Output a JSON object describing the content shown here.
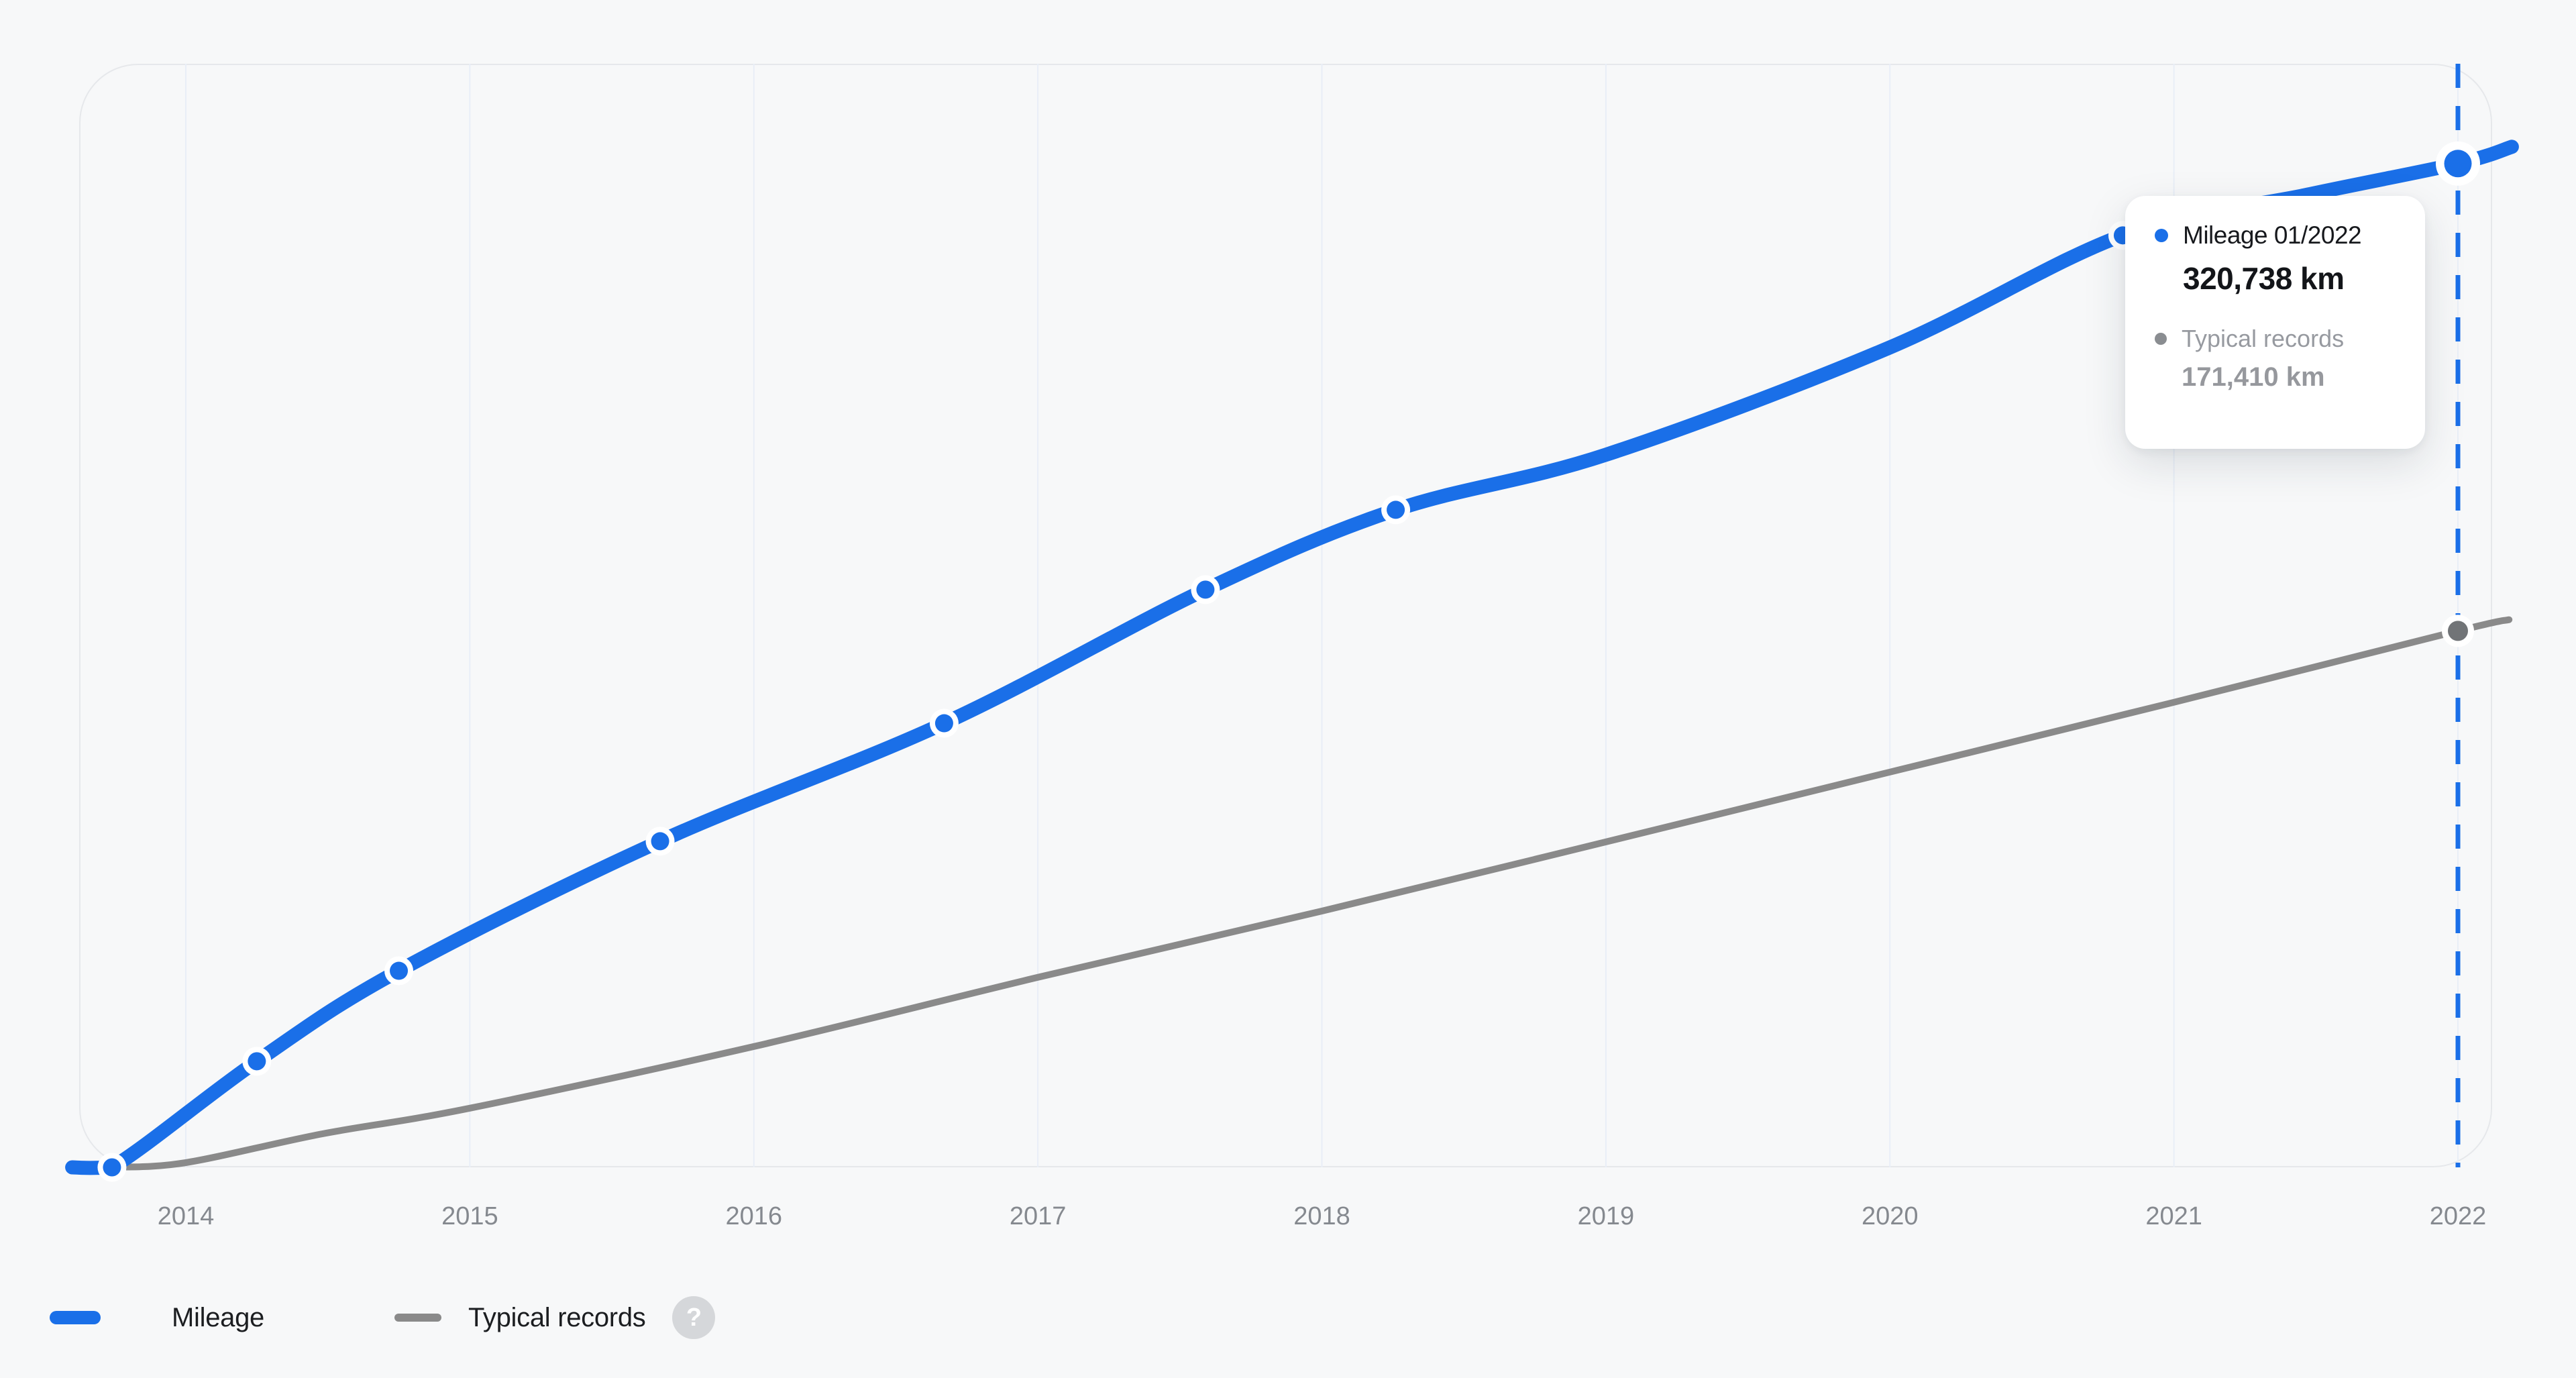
{
  "chart_data": {
    "type": "line",
    "title": "",
    "xlabel": "",
    "ylabel": "",
    "x_ticks": [
      "2014",
      "2015",
      "2016",
      "2017",
      "2018",
      "2019",
      "2020",
      "2021",
      "2022"
    ],
    "x_range_years": [
      2013.6,
      2022.19
    ],
    "y_range_km": [
      0,
      352600
    ],
    "grid": "vertical-only",
    "y_axis_labels_visible": false,
    "legend_position": "bottom-left",
    "cursor_year": 2022,
    "unit": "km",
    "series": [
      {
        "name": "Mileage",
        "color": "#1a6fe8",
        "line_width": 21,
        "points": [
          {
            "t": 2013.6,
            "v": 0
          },
          {
            "t": 2013.74,
            "v": 0,
            "dot": true
          },
          {
            "t": 2014.25,
            "v": 33900,
            "dot": true
          },
          {
            "t": 2014.75,
            "v": 62800,
            "dot": true
          },
          {
            "t": 2015.67,
            "v": 104200,
            "dot": true
          },
          {
            "t": 2016.67,
            "v": 141900,
            "dot": true
          },
          {
            "t": 2017.59,
            "v": 184600,
            "dot": true
          },
          {
            "t": 2018.26,
            "v": 210100,
            "dot": true
          },
          {
            "t": 2019.0,
            "v": 227700
          },
          {
            "t": 2020.0,
            "v": 262000
          },
          {
            "t": 2020.82,
            "v": 297800,
            "dot": true
          },
          {
            "t": 2021.47,
            "v": 310800
          },
          {
            "t": 2022.0,
            "v": 320738,
            "dot": true,
            "highlight": true
          },
          {
            "t": 2022.19,
            "v": 326100
          }
        ]
      },
      {
        "name": "Typical records",
        "color": "#8a8a8a",
        "line_width": 10,
        "points": [
          {
            "t": 2013.74,
            "v": 0
          },
          {
            "t": 2014.0,
            "v": 1500
          },
          {
            "t": 2014.48,
            "v": 10700
          },
          {
            "t": 2015.0,
            "v": 18900
          },
          {
            "t": 2016.0,
            "v": 38600
          },
          {
            "t": 2017.0,
            "v": 60700
          },
          {
            "t": 2018.0,
            "v": 81900
          },
          {
            "t": 2019.0,
            "v": 104000
          },
          {
            "t": 2020.0,
            "v": 126300
          },
          {
            "t": 2021.0,
            "v": 148600
          },
          {
            "t": 2022.0,
            "v": 171410,
            "dot": true
          },
          {
            "t": 2022.18,
            "v": 175000
          }
        ]
      }
    ]
  },
  "tooltip": {
    "title": "Mileage 01/2022",
    "value": "320,738 km",
    "secondary_label": "Typical records",
    "secondary_value": "171,410 km"
  },
  "legend": {
    "items": [
      {
        "label": "Mileage",
        "color": "#1a6fe8"
      },
      {
        "label": "Typical records",
        "color": "#8a8a8a"
      }
    ],
    "help_glyph": "?"
  },
  "colors": {
    "background": "#f7f8f9",
    "plot_border": "#e6e8eb",
    "gridline": "#e9eef7",
    "axis_label": "#85898f",
    "accent_blue": "#1a6fe8",
    "series_gray": "#8a8a8a",
    "tooltip_text": "#17191d",
    "tooltip_muted": "#979aa0"
  }
}
